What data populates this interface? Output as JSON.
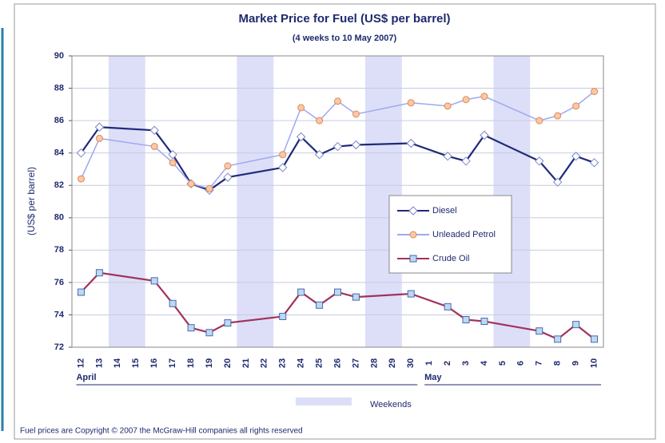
{
  "chart_data": {
    "type": "line",
    "title": "Market Price for Fuel (US$ per barrel)",
    "subtitle": "(4 weeks to 10 May 2007)",
    "y_label": "(US$ per barrel)",
    "categories": [
      "12",
      "13",
      "14",
      "15",
      "16",
      "17",
      "18",
      "19",
      "20",
      "21",
      "22",
      "23",
      "24",
      "25",
      "26",
      "27",
      "28",
      "29",
      "30",
      "1",
      "2",
      "3",
      "4",
      "5",
      "6",
      "7",
      "8",
      "9",
      "10"
    ],
    "months": [
      "April",
      "May"
    ],
    "shading_label": "Weekends",
    "footer": "Fuel prices are Copyright © 2007 the McGraw-Hill companies all rights reserved",
    "ylim": [
      72,
      90
    ],
    "yticks": [
      72,
      74,
      76,
      78,
      80,
      82,
      84,
      86,
      88,
      90
    ],
    "grid": true,
    "legend": "right",
    "series": [
      {
        "name": "Diesel",
        "color": "#1f2a7a",
        "values": [
          84.0,
          85.6,
          null,
          null,
          85.4,
          83.9,
          82.1,
          81.7,
          82.5,
          null,
          null,
          83.1,
          85.0,
          83.9,
          84.4,
          84.5,
          null,
          null,
          84.6,
          null,
          83.8,
          83.5,
          85.1,
          null,
          null,
          83.5,
          82.2,
          83.8,
          83.4
        ]
      },
      {
        "name": "Unleaded Petrol",
        "color": "#9ea8f0",
        "values": [
          82.4,
          84.9,
          null,
          null,
          84.4,
          83.4,
          82.1,
          81.8,
          83.2,
          null,
          null,
          83.9,
          86.8,
          86.0,
          87.2,
          86.4,
          null,
          null,
          87.1,
          null,
          86.9,
          87.3,
          87.5,
          null,
          null,
          86.0,
          86.3,
          86.9,
          87.8
        ]
      },
      {
        "name": "Crude Oil",
        "color": "#a3315c",
        "values": [
          75.4,
          76.6,
          null,
          null,
          76.1,
          74.7,
          73.2,
          72.9,
          73.5,
          null,
          null,
          73.9,
          75.4,
          74.6,
          75.4,
          75.1,
          null,
          null,
          75.3,
          null,
          74.5,
          73.7,
          73.6,
          null,
          null,
          73.0,
          72.5,
          73.4,
          72.5
        ]
      }
    ]
  }
}
